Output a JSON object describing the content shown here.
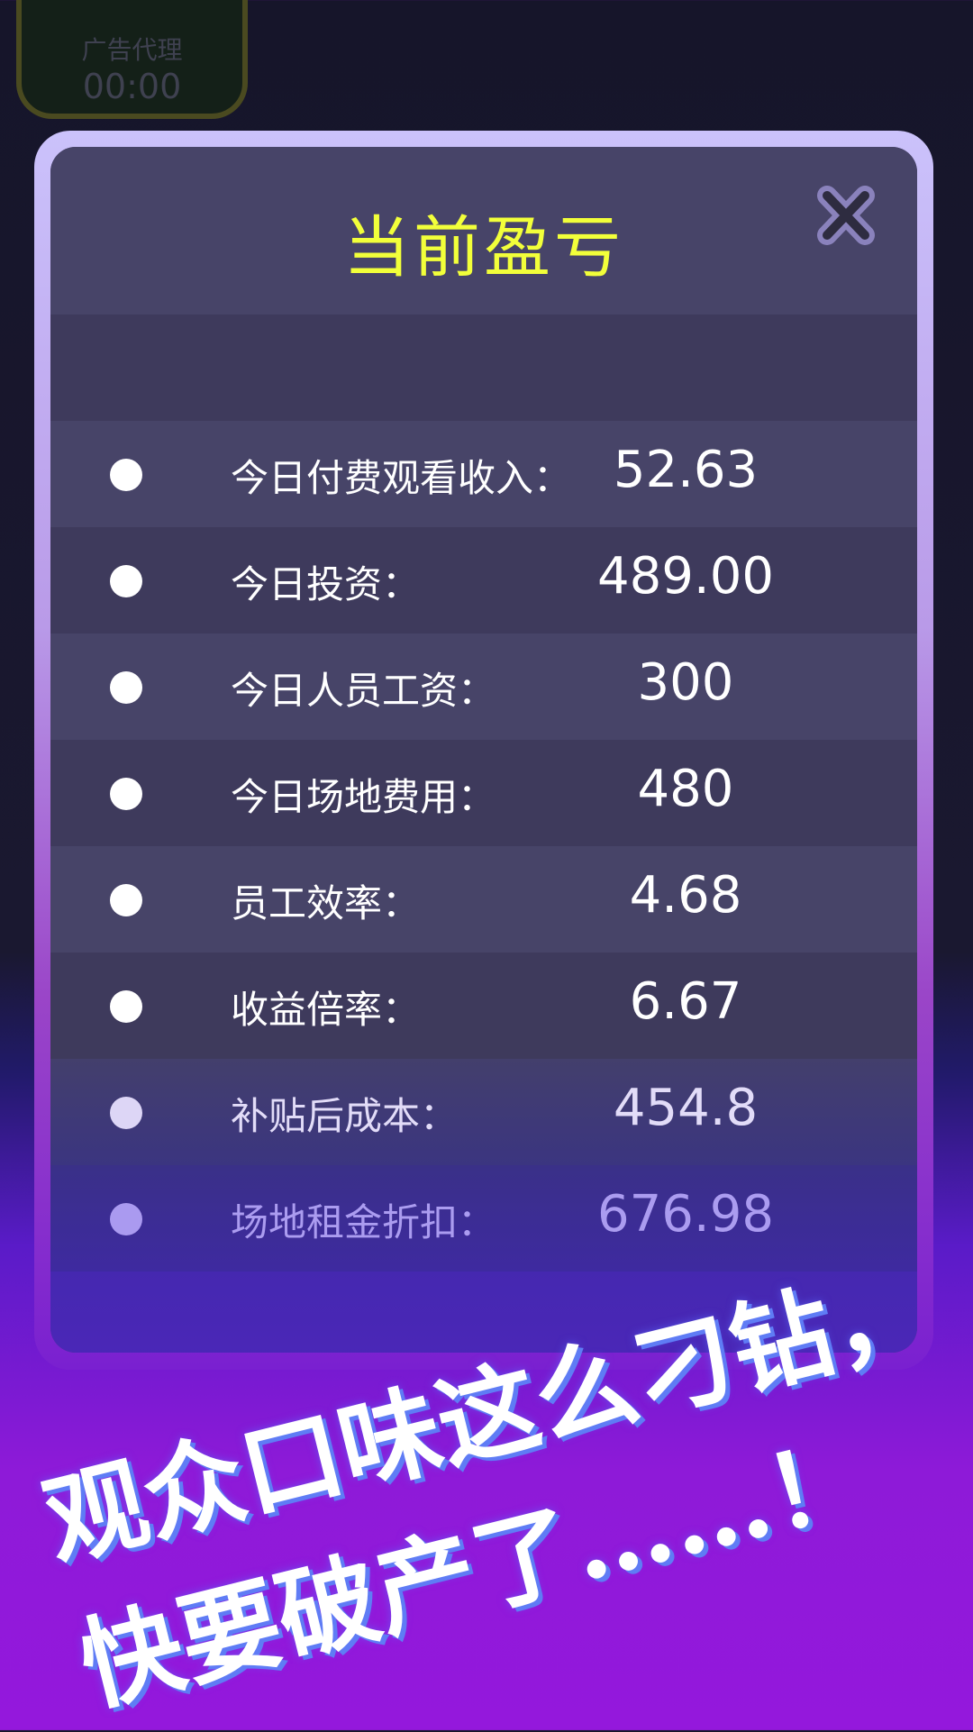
{
  "background": {
    "badge_label": "广告代理",
    "badge_timer": "00:00"
  },
  "dialog": {
    "title": "当前盈亏",
    "close_icon": "close-x-icon",
    "rows": [
      {
        "label": "今日付费观看收入：",
        "value": "52.63"
      },
      {
        "label": "今日投资：",
        "value": "489.00"
      },
      {
        "label": "今日人员工资：",
        "value": "300"
      },
      {
        "label": "今日场地费用：",
        "value": "480"
      },
      {
        "label": "员工效率：",
        "value": "4.68"
      },
      {
        "label": "收益倍率：",
        "value": "6.67"
      },
      {
        "label": "补贴后成本：",
        "value": "454.8"
      },
      {
        "label": "场地租金折扣：",
        "value": "676.98"
      }
    ]
  },
  "caption": {
    "line1": "观众口味这么刁钻，",
    "line2": "快要破产了……！"
  },
  "colors": {
    "title": "#f2ff3a",
    "panel": "#474468",
    "border": "#cbc2fb",
    "bottom": "#8e1ad8"
  }
}
